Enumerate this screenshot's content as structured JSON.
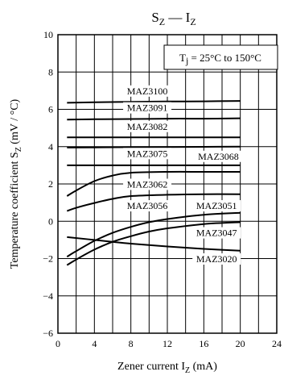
{
  "chart_data": {
    "type": "line",
    "title": {
      "main": "S",
      "sub": "Z",
      "sep": " — ",
      "main2": "I",
      "sub2": "Z"
    },
    "annotation": {
      "prefix": "T",
      "sub": "j",
      "rest": " = 25°C to 150°C"
    },
    "xlabel": {
      "text": "Zener current  I",
      "sub": "Z",
      "unit": "  (mA)"
    },
    "ylabel": {
      "text": "Temperature coefficient  S",
      "sub": "Z",
      "unit": "  (mV / °C)"
    },
    "xlim": [
      0,
      24
    ],
    "ylim": [
      -6,
      10
    ],
    "xticks": [
      0,
      4,
      8,
      12,
      16,
      20,
      24
    ],
    "yticks": [
      -6,
      -4,
      -2,
      0,
      2,
      4,
      6,
      8,
      10
    ],
    "xgrid": [
      2,
      4,
      6,
      8,
      10,
      12,
      14,
      16,
      18,
      20,
      22
    ],
    "ygrid": [
      -4,
      -2,
      0,
      2,
      4,
      6,
      8
    ],
    "grid": true,
    "series": [
      {
        "name": "MAZ3100",
        "x": [
          1,
          4,
          8,
          12,
          16,
          20
        ],
        "y": [
          6.35,
          6.38,
          6.4,
          6.42,
          6.43,
          6.45
        ]
      },
      {
        "name": "MAZ3091",
        "x": [
          1,
          4,
          8,
          12,
          16,
          20
        ],
        "y": [
          5.45,
          5.47,
          5.48,
          5.5,
          5.5,
          5.52
        ]
      },
      {
        "name": "MAZ3082",
        "x": [
          1,
          4,
          8,
          12,
          16,
          20
        ],
        "y": [
          4.5,
          4.5,
          4.5,
          4.5,
          4.5,
          4.5
        ]
      },
      {
        "name": "MAZ3075",
        "x": [
          1,
          4,
          8,
          12,
          16,
          20
        ],
        "y": [
          3.95,
          3.96,
          3.97,
          3.98,
          3.99,
          4.0
        ]
      },
      {
        "name": "MAZ3068",
        "x": [
          1,
          4,
          8,
          12,
          16,
          20
        ],
        "y": [
          3.0,
          3.0,
          3.0,
          3.0,
          3.0,
          3.0
        ]
      },
      {
        "name": "MAZ3062",
        "x": [
          1,
          2,
          4,
          6,
          8,
          12,
          16,
          20
        ],
        "y": [
          1.35,
          1.65,
          2.15,
          2.45,
          2.6,
          2.65,
          2.65,
          2.65
        ]
      },
      {
        "name": "MAZ3056",
        "x": [
          1,
          2,
          4,
          6,
          8,
          12,
          16,
          20
        ],
        "y": [
          0.55,
          0.72,
          0.98,
          1.2,
          1.35,
          1.42,
          1.45,
          1.45
        ]
      },
      {
        "name": "MAZ3051",
        "x": [
          1,
          2,
          4,
          6,
          8,
          10,
          12,
          16,
          20
        ],
        "y": [
          -1.9,
          -1.6,
          -1.05,
          -0.62,
          -0.3,
          -0.05,
          0.12,
          0.35,
          0.45
        ]
      },
      {
        "name": "MAZ3047",
        "x": [
          1,
          2,
          4,
          6,
          8,
          10,
          12,
          16,
          20
        ],
        "y": [
          -2.35,
          -2.05,
          -1.52,
          -1.1,
          -0.8,
          -0.55,
          -0.38,
          -0.15,
          -0.05
        ]
      },
      {
        "name": "MAZ3020",
        "x": [
          1,
          4,
          8,
          12,
          16,
          20
        ],
        "y": [
          -0.85,
          -1.0,
          -1.2,
          -1.35,
          -1.48,
          -1.58
        ]
      }
    ],
    "series_labels": [
      {
        "name": "MAZ3100",
        "x": 9.8,
        "y": 6.85
      },
      {
        "name": "MAZ3091",
        "x": 9.8,
        "y": 5.95
      },
      {
        "name": "MAZ3082",
        "x": 9.8,
        "y": 4.95
      },
      {
        "name": "MAZ3075",
        "x": 9.8,
        "y": 3.5
      },
      {
        "name": "MAZ3068",
        "x": 17.6,
        "y": 3.35
      },
      {
        "name": "MAZ3062",
        "x": 9.8,
        "y": 1.85
      },
      {
        "name": "MAZ3056",
        "x": 9.8,
        "y": 0.7
      },
      {
        "name": "MAZ3051",
        "x": 17.4,
        "y": 0.7
      },
      {
        "name": "MAZ3047",
        "x": 17.4,
        "y": -0.75
      },
      {
        "name": "MAZ3020",
        "x": 17.4,
        "y": -2.15
      }
    ]
  }
}
